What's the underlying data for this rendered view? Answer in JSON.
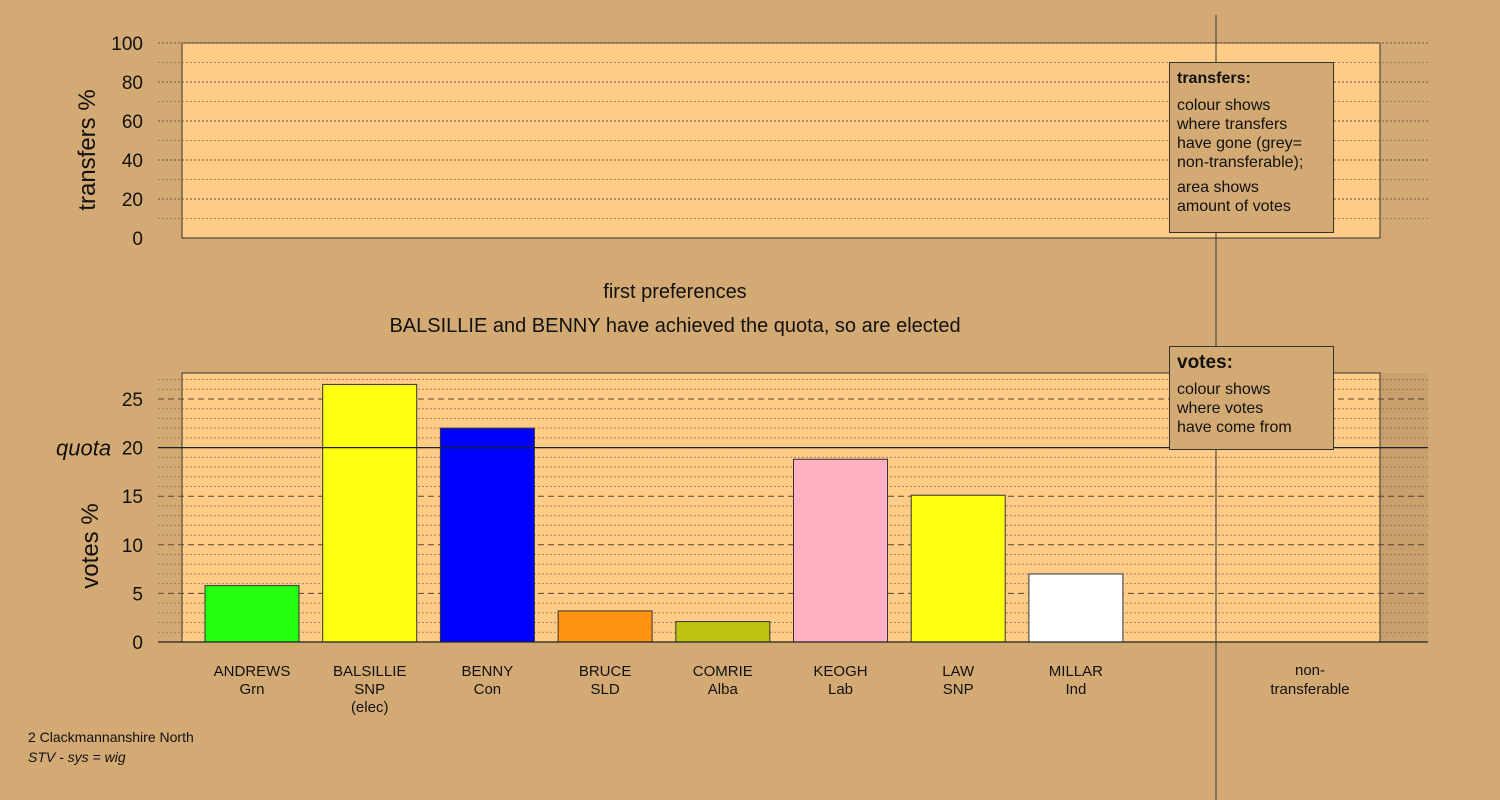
{
  "chart_data": [
    {
      "type": "bar",
      "panel": "transfers",
      "ylabel": "transfers %",
      "ylim": [
        0,
        100
      ],
      "yticks": [
        0,
        20,
        40,
        60,
        80,
        100
      ],
      "categories": [],
      "values": []
    },
    {
      "type": "bar",
      "panel": "votes",
      "title": "first preferences",
      "subtitle": "BALSILLIE and BENNY have achieved the quota, so are elected",
      "ylabel": "votes %",
      "ylim": [
        0,
        27.5
      ],
      "yticks": [
        0,
        5,
        10,
        15,
        20,
        25
      ],
      "quota": 20,
      "quota_label": "quota",
      "categories": [
        {
          "name": "ANDREWS",
          "party": "Grn",
          "note": "",
          "value": 5.8,
          "color": "#22ff11"
        },
        {
          "name": "BALSILLIE",
          "party": "SNP",
          "note": "(elec)",
          "value": 26.5,
          "color": "#ffff11"
        },
        {
          "name": "BENNY",
          "party": "Con",
          "note": "",
          "value": 22.0,
          "color": "#0000ff"
        },
        {
          "name": "BRUCE",
          "party": "SLD",
          "note": "",
          "value": 3.2,
          "color": "#ff9211"
        },
        {
          "name": "COMRIE",
          "party": "Alba",
          "note": "",
          "value": 2.1,
          "color": "#bcc311"
        },
        {
          "name": "KEOGH",
          "party": "Lab",
          "note": "",
          "value": 18.8,
          "color": "#ffb0c3"
        },
        {
          "name": "LAW",
          "party": "SNP",
          "note": "",
          "value": 15.1,
          "color": "#ffff11"
        },
        {
          "name": "MILLAR",
          "party": "Ind",
          "note": "",
          "value": 7.0,
          "color": "#ffffff"
        }
      ],
      "nontransferable": {
        "label_line1": "non-",
        "label_line2": "transferable",
        "value": 0
      }
    }
  ],
  "legend_transfers": {
    "title": "transfers:",
    "line1": "colour shows",
    "line2": "where transfers",
    "line3": "have gone (grey=",
    "line4": "non-transferable);",
    "line5": "area shows",
    "line6": "amount of votes"
  },
  "legend_votes": {
    "title": "votes:",
    "line1": "colour shows",
    "line2": "where votes",
    "line3": "have come from"
  },
  "footer": {
    "ward": "2 Clackmannanshire North",
    "system": "STV - sys = wig"
  },
  "colors": {
    "background": "#d4aa74",
    "plot_fill": "#ffcc88"
  }
}
